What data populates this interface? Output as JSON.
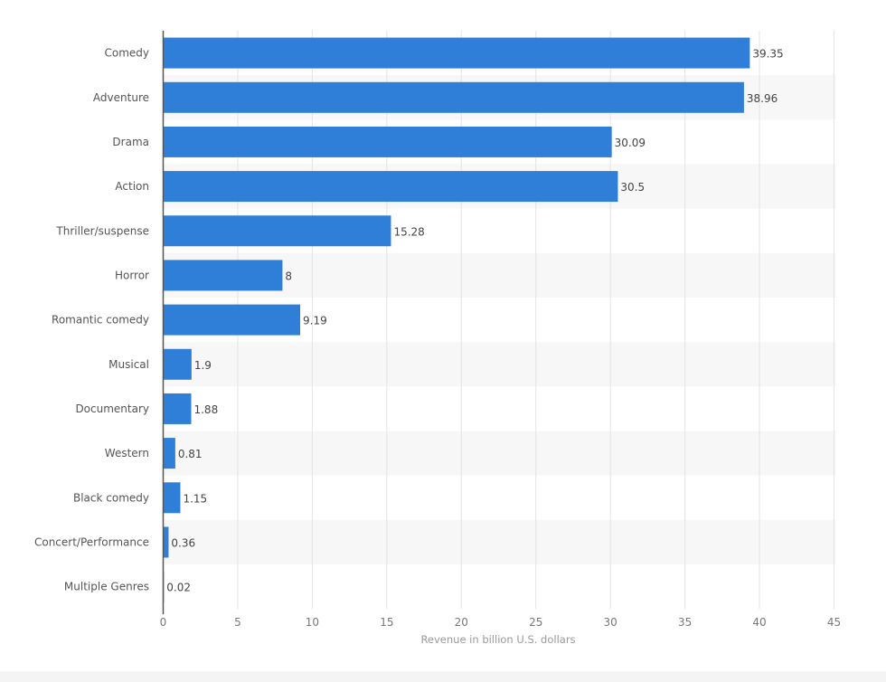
{
  "chart_data": {
    "type": "bar",
    "orientation": "horizontal",
    "categories": [
      "Comedy",
      "Adventure",
      "Drama",
      "Action",
      "Thriller/suspense",
      "Horror",
      "Romantic comedy",
      "Musical",
      "Documentary",
      "Western",
      "Black comedy",
      "Concert/Performance",
      "Multiple Genres"
    ],
    "values": [
      39.35,
      38.96,
      30.09,
      30.5,
      15.28,
      8,
      9.19,
      1.9,
      1.88,
      0.81,
      1.15,
      0.36,
      0.02
    ],
    "value_labels": [
      "39.35",
      "38.96",
      "30.09",
      "30.5",
      "15.28",
      "8",
      "9.19",
      "1.9",
      "1.88",
      "0.81",
      "1.15",
      "0.36",
      "0.02"
    ],
    "xlabel": "Revenue in billion U.S. dollars",
    "ylabel": "",
    "xlim": [
      0,
      45
    ],
    "xticks": [
      "0",
      "5",
      "10",
      "15",
      "20",
      "25",
      "30",
      "35",
      "40",
      "45"
    ],
    "grid": true,
    "bar_color": "#2f7ed8",
    "band_color": "#f7f7f7"
  }
}
